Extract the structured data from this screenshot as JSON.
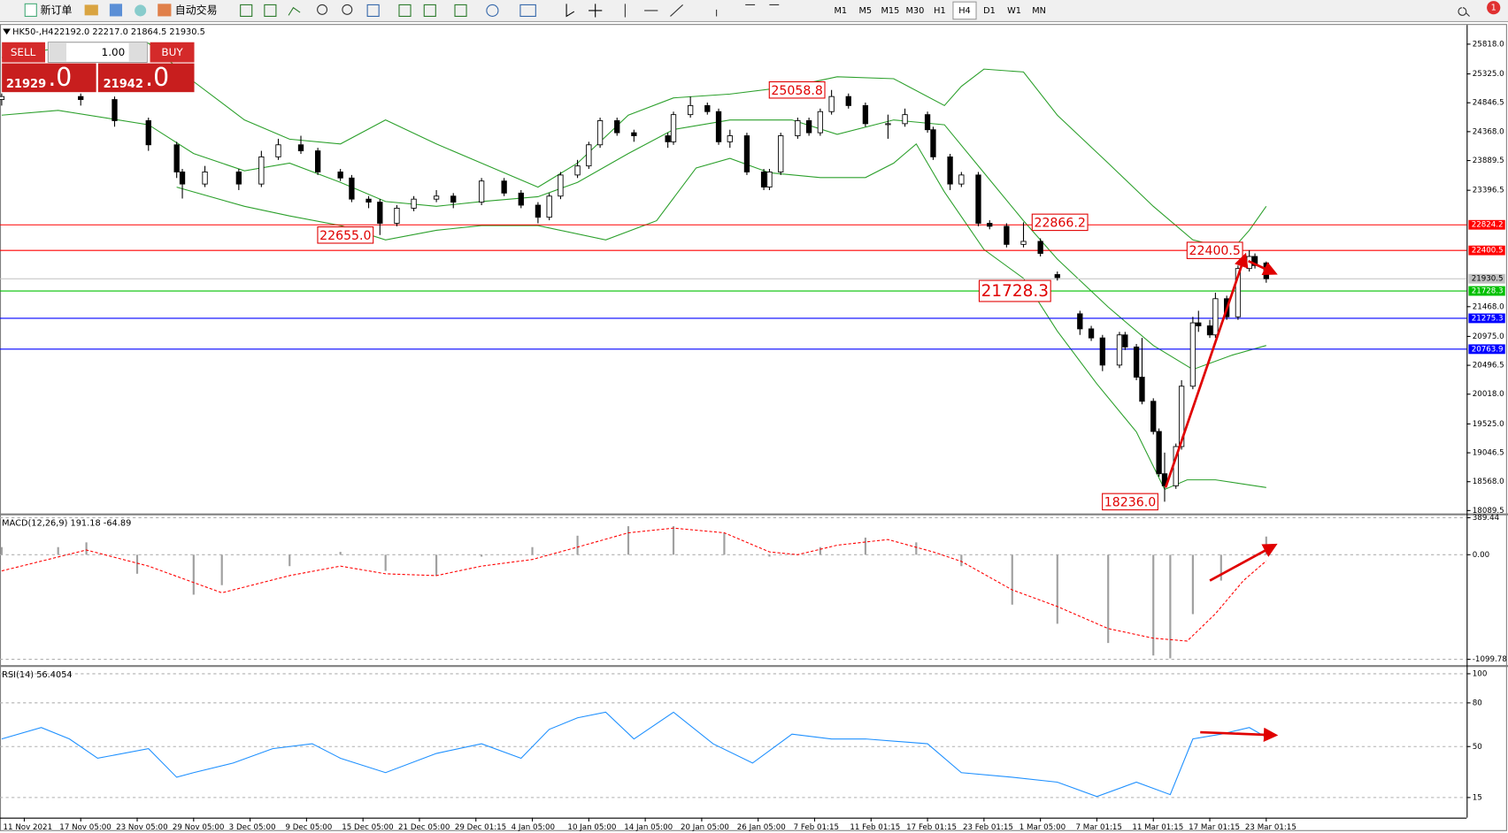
{
  "toolbar": {
    "new_order": "新订单",
    "auto_trading": "自动交易",
    "timeframes": [
      "M1",
      "M5",
      "M15",
      "M30",
      "H1",
      "H4",
      "D1",
      "W1",
      "MN"
    ],
    "active": "H4",
    "badge": "1"
  },
  "trade_panel": {
    "sell": "SELL",
    "buy": "BUY",
    "lot": "1.00",
    "sell_price": "21929",
    "sell_fraction": ".0",
    "buy_price": "21942",
    "buy_fraction": ".0"
  },
  "chart_data": [
    {
      "type": "candlestick",
      "title": "HK50-,H4",
      "info": "22192.0 22217.0 21864.5 21930.5",
      "up_color": "#ffffff",
      "down_color": "#000000",
      "x": [
        0,
        14,
        20,
        26,
        31,
        32,
        36,
        42,
        46,
        49,
        53,
        56,
        60,
        62,
        65,
        67,
        70,
        73,
        77,
        80,
        85,
        89,
        92,
        95,
        97,
        99,
        102,
        104,
        106,
        109,
        112,
        118,
        119,
        122,
        125,
        127,
        129,
        132,
        135,
        136,
        138,
        141,
        143,
        145,
        147,
        150,
        153,
        157,
        160,
        164,
        165,
        168,
        170,
        173,
        175,
        178,
        181,
        184,
        187,
        191,
        193,
        195,
        198,
        199,
        201,
        202,
        204,
        205,
        206,
        208,
        209,
        211,
        212,
        214,
        215,
        217,
        219,
        221,
        222,
        224
      ],
      "open": [
        24900,
        24950,
        24900,
        24550,
        24150,
        23700,
        23500,
        23700,
        23500,
        23950,
        24150,
        24050,
        23700,
        23600,
        23250,
        23200,
        22850,
        23100,
        23250,
        23300,
        23200,
        23550,
        23350,
        23150,
        22950,
        23300,
        23650,
        23800,
        24150,
        24550,
        24350,
        24300,
        24200,
        24650,
        24800,
        24700,
        24200,
        24300,
        23700,
        23450,
        23700,
        24300,
        24550,
        24350,
        24700,
        24950,
        24800,
        24500,
        24500,
        24650,
        24400,
        23950,
        23500,
        23650,
        22850,
        22800,
        22500,
        22550,
        22000,
        21350,
        21100,
        20950,
        20500,
        21000,
        20800,
        20300,
        19900,
        19400,
        18700,
        18500,
        19150,
        20150,
        21200,
        21150,
        21000,
        21600,
        21300,
        22100,
        22300,
        22192
      ],
      "high": [
        25000,
        25000,
        24950,
        24600,
        24200,
        23750,
        23800,
        23750,
        24050,
        24250,
        24300,
        24100,
        23750,
        23650,
        23300,
        23250,
        23150,
        23300,
        23400,
        23350,
        23600,
        23600,
        23400,
        23200,
        23350,
        23700,
        23900,
        24200,
        24600,
        24600,
        24400,
        24350,
        24700,
        24950,
        24850,
        24750,
        24400,
        24350,
        23750,
        23750,
        24350,
        24600,
        24600,
        24750,
        25058.8,
        25000,
        24850,
        24650,
        24750,
        24700,
        24450,
        24000,
        23700,
        23700,
        22900,
        22850,
        22866.2,
        22600,
        22050,
        21400,
        21150,
        21000,
        21050,
        21050,
        20850,
        20950,
        19950,
        19450,
        19050,
        19200,
        20250,
        21300,
        21400,
        21250,
        21700,
        21650,
        22150,
        22400.5,
        22350,
        22217
      ],
      "low": [
        24800,
        24800,
        24450,
        24050,
        23600,
        23260,
        23450,
        23400,
        23450,
        23900,
        24000,
        23650,
        23550,
        23200,
        23100,
        22655,
        22800,
        23050,
        23200,
        23100,
        23150,
        23300,
        23100,
        22850,
        22900,
        23250,
        23600,
        23750,
        24100,
        24300,
        24200,
        24100,
        24150,
        24600,
        24650,
        24150,
        24100,
        23650,
        23400,
        23400,
        23650,
        24250,
        24300,
        24300,
        24650,
        24750,
        24450,
        24250,
        24450,
        24350,
        23900,
        23400,
        23450,
        22800,
        22750,
        22450,
        22450,
        22300,
        21900,
        21000,
        20900,
        20400,
        20450,
        20750,
        20250,
        19850,
        19350,
        18650,
        18236,
        18450,
        19100,
        20100,
        21050,
        20950,
        20950,
        21250,
        21250,
        22050,
        22100,
        21864.5
      ],
      "close": [
        24950,
        24900,
        24550,
        24150,
        23700,
        23500,
        23700,
        23500,
        23950,
        24150,
        24050,
        23700,
        23600,
        23250,
        23200,
        22850,
        23100,
        23250,
        23300,
        23200,
        23550,
        23350,
        23150,
        22950,
        23300,
        23650,
        23800,
        24150,
        24550,
        24350,
        24300,
        24200,
        24650,
        24800,
        24700,
        24200,
        24300,
        23700,
        23450,
        23700,
        24300,
        24550,
        24350,
        24700,
        24950,
        24800,
        24500,
        24500,
        24650,
        24400,
        23950,
        23500,
        23650,
        22850,
        22800,
        22500,
        22550,
        22350,
        21950,
        21100,
        20950,
        20500,
        21000,
        20800,
        20300,
        19900,
        19400,
        18700,
        18500,
        19150,
        20150,
        21200,
        21150,
        21000,
        21600,
        21300,
        22100,
        22300,
        22150,
        21930.5
      ],
      "bands": [
        {
          "color": "#2ca02c",
          "x": [
            0,
            10,
            26,
            34,
            43,
            51,
            60,
            68,
            77,
            85,
            95,
            102,
            111,
            119,
            129,
            140,
            148,
            158,
            167,
            170,
            174,
            181,
            187,
            196,
            204,
            211,
            218,
            221,
            224
          ],
          "values": [
            25595,
            25754,
            25834,
            25198,
            24562,
            24244,
            24164,
            24562,
            24164,
            23846,
            23449,
            23846,
            24641,
            24928,
            24991,
            25118,
            25277,
            25246,
            24800,
            25118,
            25405,
            25357,
            24641,
            23846,
            23131,
            22574,
            22415,
            22733,
            23131
          ]
        },
        {
          "color": "#2ca02c",
          "x": [
            0,
            10,
            26,
            34,
            43,
            51,
            60,
            68,
            77,
            85,
            95,
            102,
            111,
            119,
            129,
            140,
            148,
            158,
            167,
            174,
            181,
            187,
            196,
            204,
            211,
            218,
            224
          ],
          "values": [
            24641,
            24721,
            24482,
            24005,
            23719,
            23846,
            23528,
            23210,
            23131,
            23210,
            23290,
            23528,
            24005,
            24403,
            24562,
            24562,
            24323,
            24562,
            24482,
            23687,
            22892,
            22256,
            21461,
            20825,
            20428,
            20666,
            20825
          ]
        },
        {
          "color": "#2ca02c",
          "x": [
            31,
            43,
            51,
            60,
            68,
            77,
            85,
            95,
            107,
            116,
            123,
            129,
            136,
            145,
            153,
            158,
            162,
            167,
            174,
            181,
            187,
            194,
            201,
            206,
            210,
            215,
            224
          ],
          "values": [
            23449,
            23131,
            22972,
            22813,
            22574,
            22733,
            22813,
            22813,
            22574,
            22892,
            23767,
            23926,
            23687,
            23608,
            23608,
            23846,
            24164,
            23369,
            22415,
            21938,
            21064,
            20189,
            19394,
            18440,
            18599,
            18599,
            18472
          ]
        }
      ],
      "hlines": [
        {
          "value": 22824.2,
          "color": "#ff0000",
          "text_color": "#ffffff"
        },
        {
          "value": 22400.5,
          "color": "#ff0000",
          "text_color": "#ffffff"
        },
        {
          "value": 21930.5,
          "color": "#c0c0c0",
          "text_color": "#000000"
        },
        {
          "value": 21728.3,
          "color": "#00c000",
          "text_color": "#ffffff"
        },
        {
          "value": 21275.3,
          "color": "#0000ff",
          "text_color": "#ffffff"
        },
        {
          "value": 20763.9,
          "color": "#0000ff",
          "text_color": "#ffffff"
        }
      ],
      "annotations": [
        {
          "value": 25058.8,
          "x": 147,
          "anchor": "end"
        },
        {
          "value": 22655,
          "label": "22655.0",
          "x": 67,
          "anchor": "end"
        },
        {
          "value": 22866.2,
          "x": 181,
          "anchor": "start"
        },
        {
          "value": 22400.5,
          "x": 221,
          "anchor": "end"
        },
        {
          "value": 21728.3,
          "x": 187,
          "anchor": "end",
          "size": "large"
        },
        {
          "value": 18236,
          "label": "18236.0",
          "x": 206,
          "anchor": "end"
        }
      ],
      "xlim": [
        -0.3,
        259.5
      ],
      "ylim": [
        18042,
        26136
      ],
      "yticks": [
        {
          "value": 25818,
          "label": "25818.0"
        },
        {
          "value": 25325,
          "label": "25325.0"
        },
        24846.5,
        {
          "value": 24368,
          "label": "24368.0"
        },
        23889.5,
        23396.5,
        {
          "value": 21468,
          "label": "21468.0"
        },
        {
          "value": 20975,
          "label": "20975.0"
        },
        20496.5,
        {
          "value": 20018,
          "label": "20018.0"
        },
        {
          "value": 19525,
          "label": "19525.0"
        },
        19046.5,
        {
          "value": 18568,
          "label": "18568.0"
        },
        18089.5
      ]
    },
    {
      "type": "macd",
      "title": "MACD(12,26,9) 191.18 -64.89",
      "series": [
        {
          "kind": "histogram",
          "color": "#a0a0a0",
          "x": [
            0,
            10,
            15,
            24,
            34,
            39,
            51,
            60,
            68,
            77,
            85,
            94,
            102,
            111,
            119,
            128,
            136,
            145,
            153,
            162,
            170,
            179,
            187,
            196,
            204,
            207,
            211,
            216,
            221,
            224
          ],
          "values": [
            80,
            80,
            130,
            -200,
            -420,
            -320,
            -120,
            30,
            -170,
            -220,
            -20,
            80,
            200,
            300,
            300,
            230,
            -20,
            80,
            180,
            130,
            -120,
            -525,
            -726,
            -928,
            -1059,
            -1090,
            -625,
            -272,
            0,
            191.18
          ]
        },
        {
          "kind": "signal",
          "color": "#ff0000",
          "x": [
            0,
            15,
            26,
            39,
            51,
            60,
            68,
            77,
            85,
            94,
            102,
            111,
            119,
            128,
            136,
            141,
            148,
            157,
            165,
            170,
            179,
            187,
            196,
            204,
            210,
            215,
            220,
            224
          ],
          "values": [
            -170,
            50,
            -120,
            -400,
            -220,
            -120,
            -200,
            -220,
            -120,
            -50,
            80,
            230,
            280,
            230,
            30,
            0,
            100,
            160,
            30,
            -70,
            -370,
            -545,
            -777,
            -878,
            -908,
            -620,
            -270,
            -64.89
          ]
        }
      ],
      "xlim": [
        -0.3,
        259.5
      ],
      "ylim": [
        -1150,
        404
      ],
      "yticks": [
        389.44,
        {
          "value": 0,
          "label": "0.00"
        },
        -1099.78
      ]
    },
    {
      "type": "rsi",
      "title": "RSI(14) 56.4054",
      "color": "#1e90ff",
      "x": [
        0,
        7,
        12,
        17,
        26,
        31,
        34,
        41,
        48,
        55,
        60,
        68,
        77,
        85,
        92,
        97,
        102,
        107,
        112,
        119,
        126,
        133,
        140,
        147,
        153,
        164,
        170,
        179,
        187,
        194,
        201,
        207,
        211,
        216,
        221,
        224
      ],
      "values": [
        55.2,
        63.1,
        55.2,
        42.0,
        48.6,
        28.9,
        32.1,
        38.7,
        48.6,
        51.9,
        42.0,
        32.1,
        45.3,
        51.9,
        42.0,
        61.8,
        69.7,
        73.6,
        55.2,
        73.6,
        51.9,
        38.7,
        58.5,
        55.2,
        55.2,
        51.9,
        32.1,
        28.9,
        25.6,
        15.7,
        25.6,
        17.0,
        55.2,
        58.5,
        63.1,
        56.4054
      ],
      "xlim": [
        -0.3,
        259.5
      ],
      "ylim": [
        2.5,
        104
      ],
      "yticks": [
        100,
        80,
        50,
        15
      ],
      "xticks": [
        {
          "value": 4,
          "label": "11 Nov 2021"
        },
        {
          "value": 14,
          "label": "17 Nov 05:00"
        },
        {
          "value": 24,
          "label": "23 Nov 05:00"
        },
        {
          "value": 34,
          "label": "29 Nov 05:00"
        },
        {
          "value": 44,
          "label": "3 Dec 05:00"
        },
        {
          "value": 54,
          "label": "9 Dec 05:00"
        },
        {
          "value": 64,
          "label": "15 Dec 05:00"
        },
        {
          "value": 74,
          "label": "21 Dec 05:00"
        },
        {
          "value": 84,
          "label": "29 Dec 01:15"
        },
        {
          "value": 94,
          "label": "4 Jan 05:00"
        },
        {
          "value": 104,
          "label": "10 Jan 05:00"
        },
        {
          "value": 114,
          "label": "14 Jan 05:00"
        },
        {
          "value": 124,
          "label": "20 Jan 05:00"
        },
        {
          "value": 134,
          "label": "26 Jan 05:00"
        },
        {
          "value": 144,
          "label": "7 Feb 01:15"
        },
        {
          "value": 154,
          "label": "11 Feb 01:15"
        },
        {
          "value": 164,
          "label": "17 Feb 01:15"
        },
        {
          "value": 174,
          "label": "23 Feb 01:15"
        },
        {
          "value": 184,
          "label": "1 Mar 05:00"
        },
        {
          "value": 194,
          "label": "7 Mar 01:15"
        },
        {
          "value": 204,
          "label": "11 Mar 01:15"
        },
        {
          "value": 214,
          "label": "17 Mar 01:15"
        },
        {
          "value": 224,
          "label": "23 Mar 01:15"
        }
      ]
    }
  ]
}
